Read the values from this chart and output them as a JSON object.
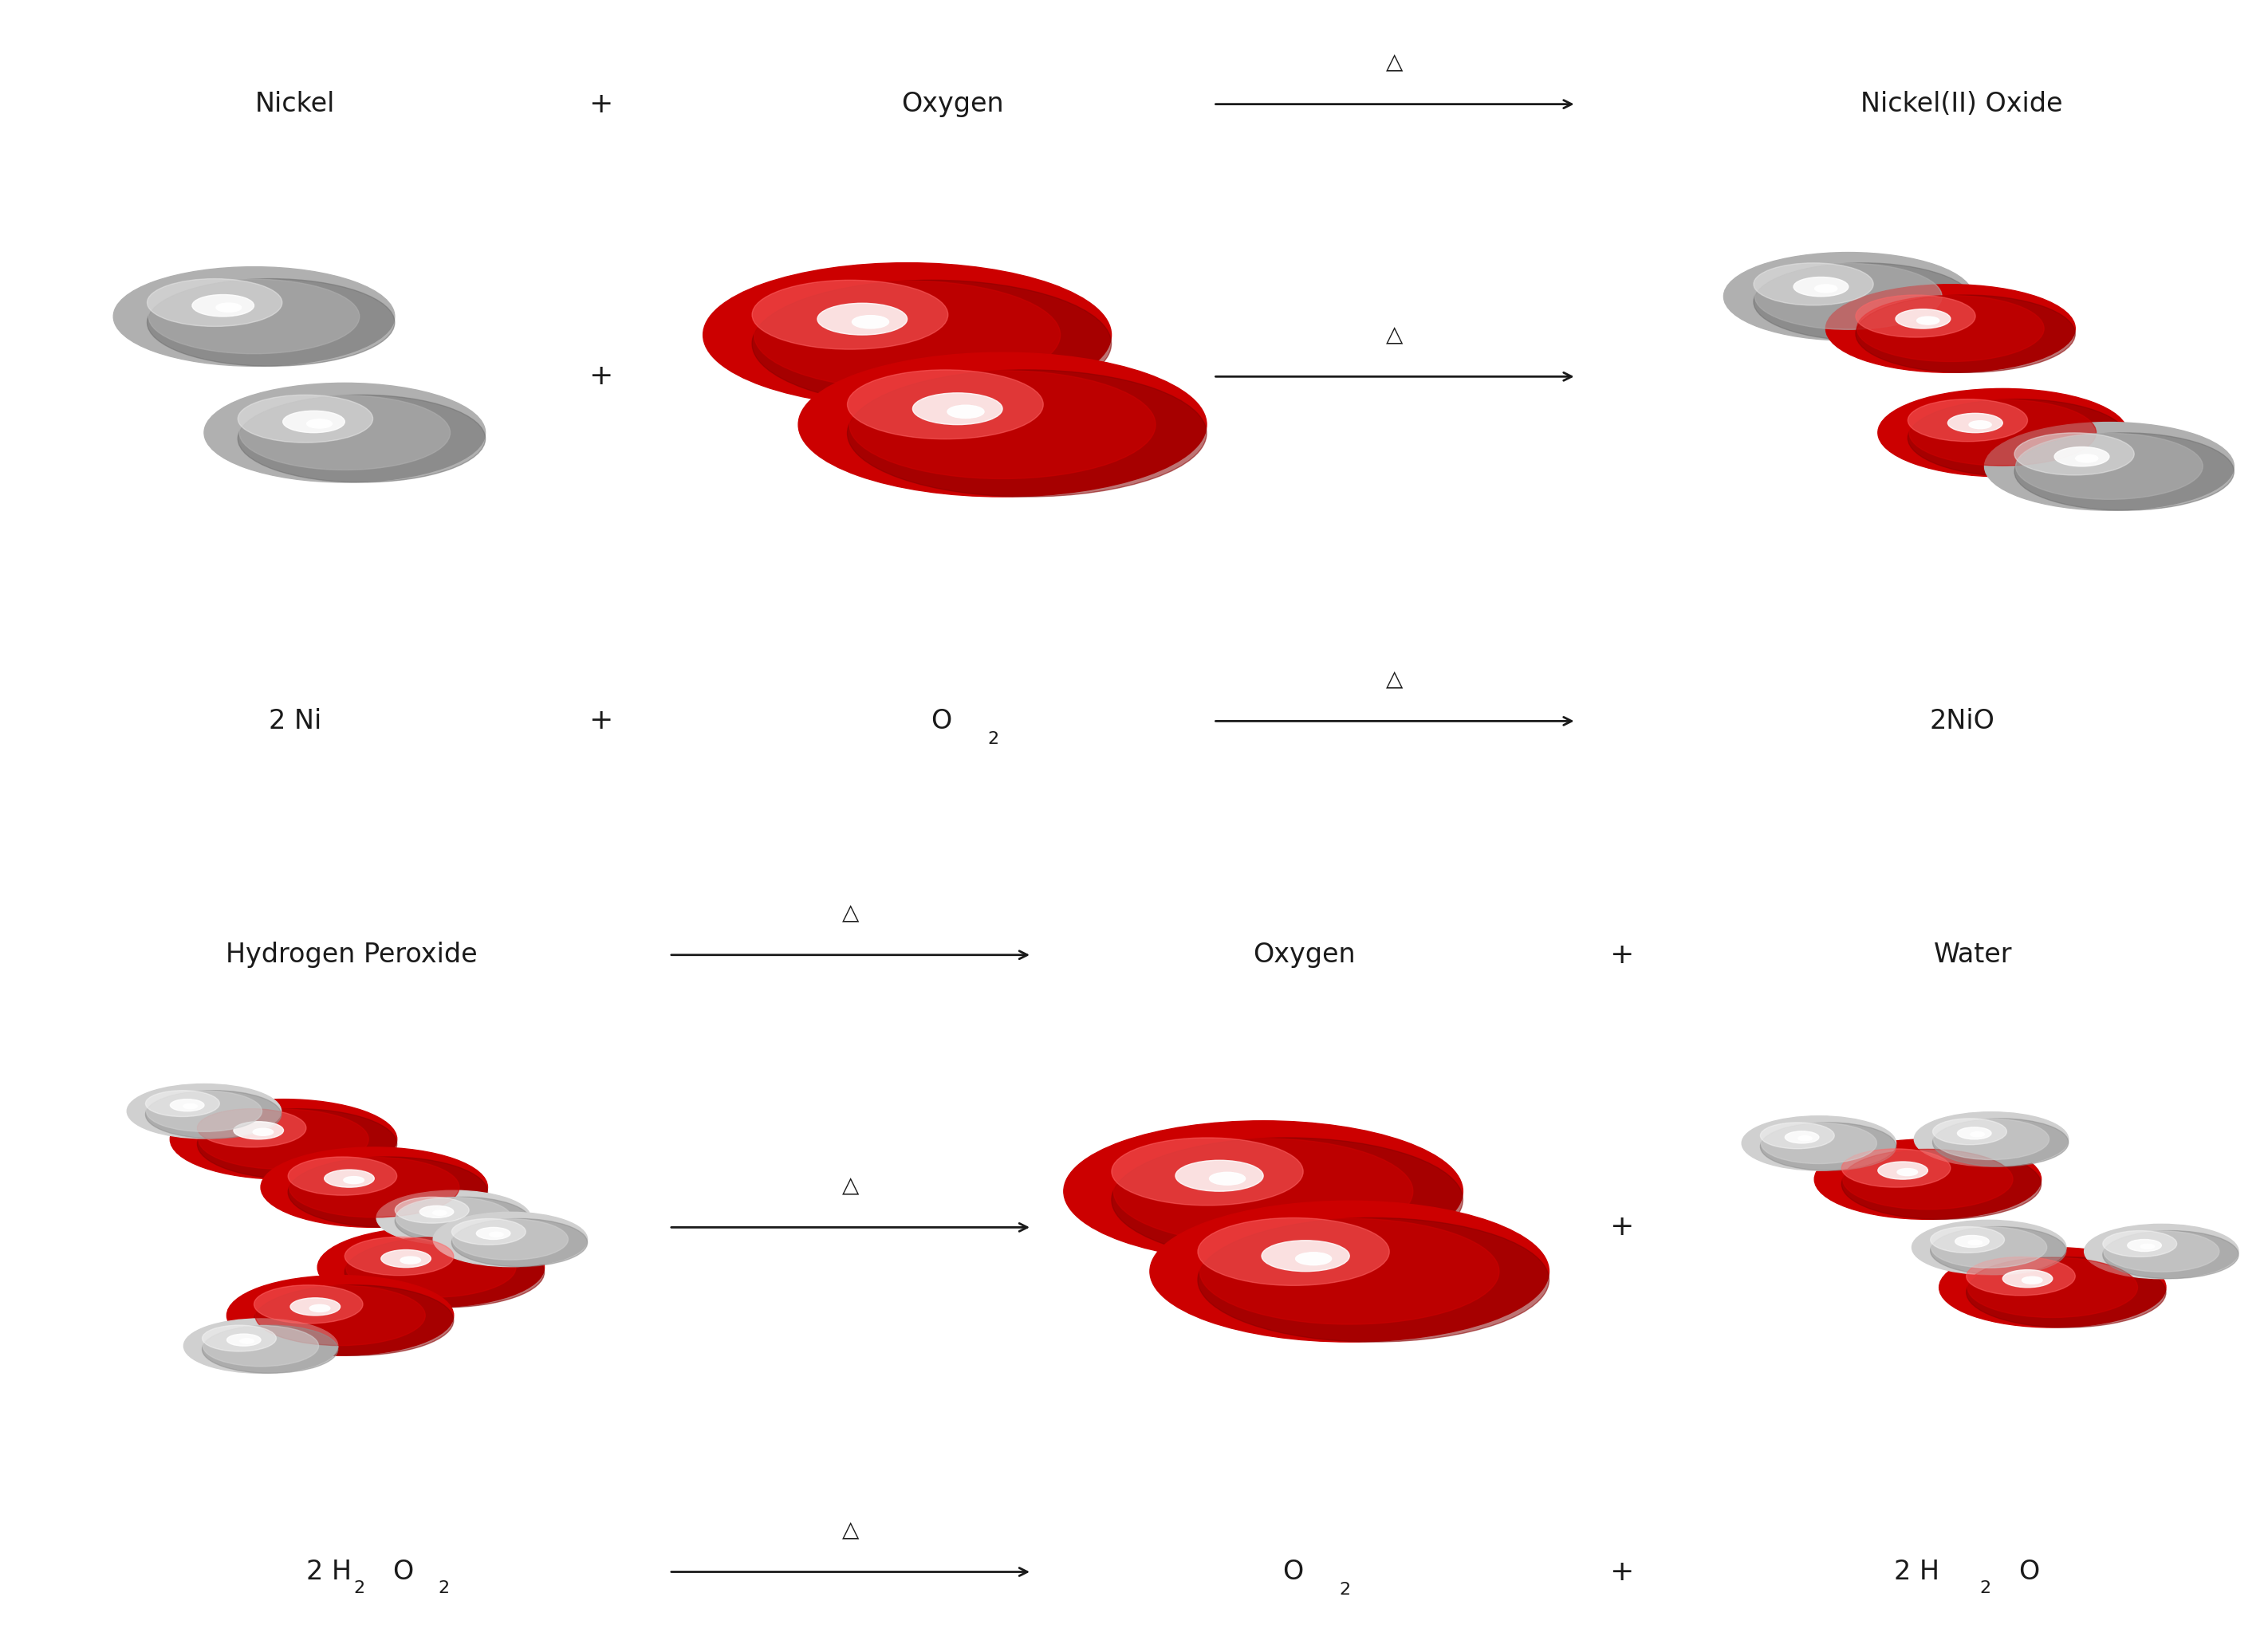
{
  "bg_color": "#d9d9d9",
  "white_strip_color": "#ffffff",
  "text_color": "#1a1a1a",
  "reaction1": {
    "reactant1_label": "Nickel",
    "reactant2_label": "Oxygen",
    "product_label": "Nickel(II) Oxide",
    "reactant1_formula": "2 Ni",
    "reactant2_formula_base": "O",
    "reactant2_formula_sub": "2",
    "product_formula": "2NiO",
    "plus": "+",
    "arrow_label": "△"
  },
  "reaction2": {
    "reactant_label": "Hydrogen Peroxide",
    "product1_label": "Oxygen",
    "product2_label": "Water",
    "reactant_formula_parts": [
      "2 H",
      "2",
      "O",
      "2"
    ],
    "product1_formula_base": "O",
    "product1_formula_sub": "2",
    "product2_formula_parts": [
      "2 H",
      "2",
      "O"
    ],
    "plus": "+",
    "arrow_label": "△"
  },
  "ni_color": "#b0b0b0",
  "ni_highlight": "#e8e8e8",
  "ni_shadow": "#707070",
  "o_color": "#cc0000",
  "o_highlight": "#ff6666",
  "o_shadow": "#880000",
  "h_color": "#d0d0d0",
  "h_highlight": "#f5f5f5",
  "h_shadow": "#909090"
}
